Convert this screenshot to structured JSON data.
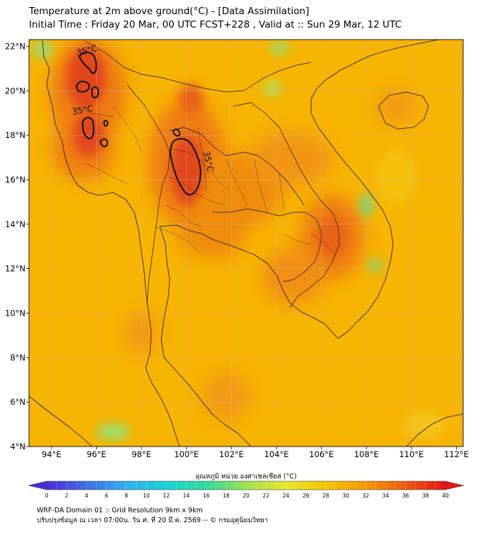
{
  "header": {
    "title": "Temperature at 2m above ground(°C) - [Data Assimilation]",
    "subtitle": "Initial Time : Friday 20 Mar, 00 UTC FCST+228 , Valid at :: Sun 29 Mar, 12 UTC"
  },
  "map": {
    "lon_ticks": [
      "94°E",
      "96°E",
      "98°E",
      "100°E",
      "102°E",
      "104°E",
      "106°E",
      "108°E",
      "110°E",
      "112°E"
    ],
    "lat_ticks": [
      "22°N",
      "20°N",
      "18°N",
      "16°N",
      "14°N",
      "12°N",
      "10°N",
      "8°N",
      "6°N",
      "4°N"
    ],
    "lon_values": [
      94,
      96,
      98,
      100,
      102,
      104,
      106,
      108,
      110,
      112
    ],
    "lat_values": [
      22,
      20,
      18,
      16,
      14,
      12,
      10,
      8,
      6,
      4
    ],
    "extent": {
      "lon_min": 93,
      "lon_max": 112.3,
      "lat_min": 4,
      "lat_max": 22.3
    },
    "contour_labels": [
      "35°C",
      "35°C",
      "35°C"
    ],
    "contour_level": 35,
    "colors": {
      "warm_bg": "#f7b400",
      "hot": "#f07a10",
      "very_hot": "#e2421b",
      "cool": "#c7df3a",
      "cooler": "#7fd37a"
    }
  },
  "colorbar": {
    "title": "อุณหภูมิ หน่วย องศาเซลเซียส (°C)",
    "ticks": [
      "0",
      "2",
      "4",
      "6",
      "8",
      "10",
      "12",
      "14",
      "16",
      "18",
      "20",
      "22",
      "24",
      "26",
      "28",
      "30",
      "32",
      "34",
      "36",
      "38",
      "40"
    ],
    "min": 0,
    "max": 40,
    "stops": [
      "#4a2bd8",
      "#3e6ee8",
      "#2fb2f0",
      "#18d2d8",
      "#2fdc9a",
      "#9ee24e",
      "#e8e82a",
      "#f7c400",
      "#f39a00",
      "#ee5a10",
      "#e21616"
    ]
  },
  "footer": {
    "line1": "WRF-DA Domain 01 :: Grid Resolution 9km x 9km",
    "line2": "ปรับปรุงข้อมูล ณ เวลา 07:00น. วัน ศ. ที่ 20 มี.ค. 2569 -- © กรมอุตุนิยมวิทยา"
  }
}
